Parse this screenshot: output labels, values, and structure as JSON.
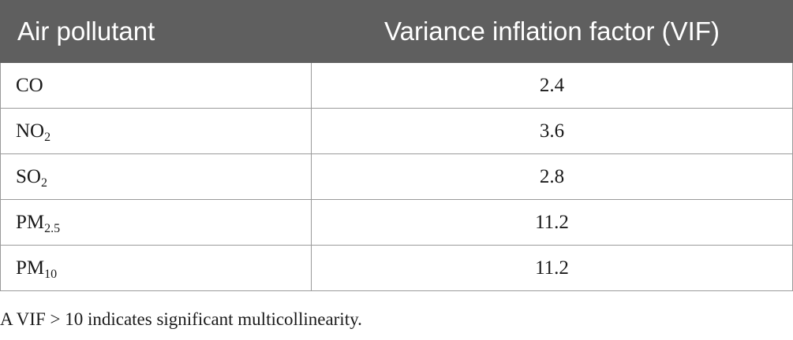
{
  "table": {
    "headers": {
      "pollutant": "Air pollutant",
      "vif": "Variance inflation factor (VIF)"
    },
    "rows": [
      {
        "base": "CO",
        "sub": "",
        "vif": "2.4"
      },
      {
        "base": "NO",
        "sub": "2",
        "vif": "3.6"
      },
      {
        "base": "SO",
        "sub": "2",
        "vif": "2.8"
      },
      {
        "base": "PM",
        "sub": "2.5",
        "vif": "11.2"
      },
      {
        "base": "PM",
        "sub": "10",
        "vif": "11.2"
      }
    ]
  },
  "footnote": "A VIF > 10 indicates significant multicollinearity."
}
